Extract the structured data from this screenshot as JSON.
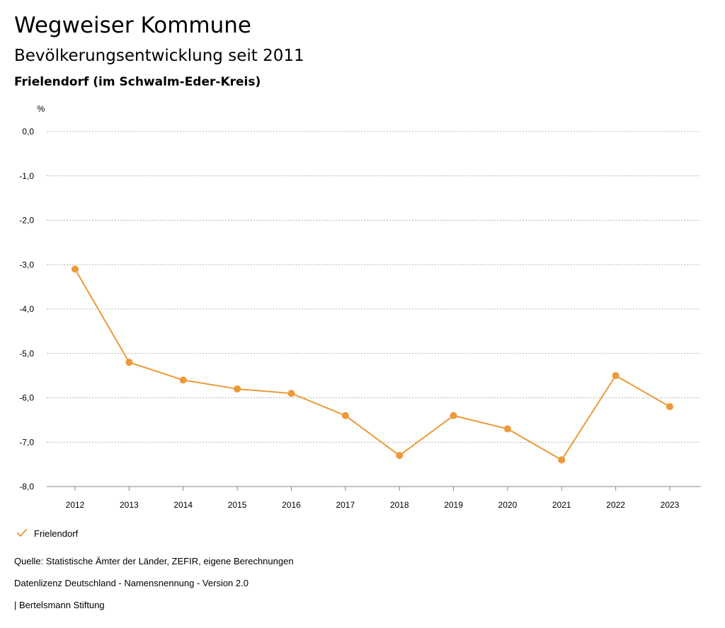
{
  "header": {
    "title": "Wegweiser Kommune",
    "subtitle": "Bevölkerungsentwicklung seit 2011",
    "region": "Frielendorf (im Schwalm-Eder-Kreis)"
  },
  "chart_data": {
    "type": "line",
    "title": "Bevölkerungsentwicklung seit 2011",
    "ylabel": "%",
    "xlabel": "",
    "ylim": [
      -8,
      0
    ],
    "yticks": [
      0,
      -1,
      -2,
      -3,
      -4,
      -5,
      -6,
      -7,
      -8
    ],
    "ytick_labels": [
      "0,0",
      "-1,0",
      "-2,0",
      "-3,0",
      "-4,0",
      "-5,0",
      "-6,0",
      "-7,0",
      "-8,0"
    ],
    "grid": true,
    "categories": [
      "2012",
      "2013",
      "2014",
      "2015",
      "2016",
      "2017",
      "2018",
      "2019",
      "2020",
      "2021",
      "2022",
      "2023"
    ],
    "series": [
      {
        "name": "Frielendorf",
        "color": "#ec9a37",
        "values": [
          -3.1,
          -5.2,
          -5.6,
          -5.8,
          -5.9,
          -6.4,
          -7.3,
          -6.4,
          -6.7,
          -7.4,
          -5.5,
          -6.2
        ]
      }
    ],
    "legend": "bottom-left"
  },
  "legend": {
    "label": "Frielendorf"
  },
  "footer": {
    "source": "Quelle: Statistische Ämter der Länder, ZEFIR, eigene Berechnungen",
    "license": "Datenlizenz Deutschland - Namensnennung - Version 2.0",
    "publisher": "| Bertelsmann Stiftung"
  }
}
